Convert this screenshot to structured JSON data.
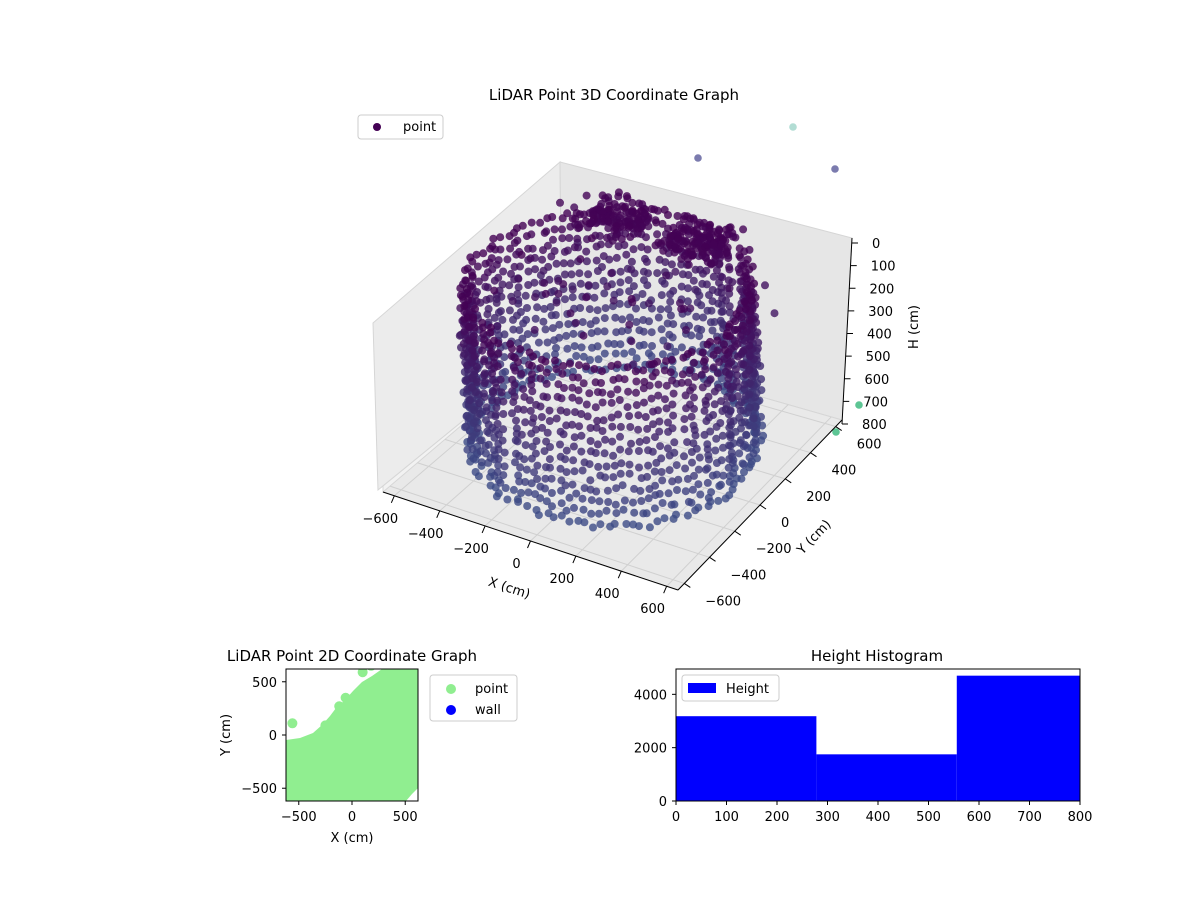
{
  "colors": {
    "point3d_low": "#440154",
    "point3d_high": "#3b528b",
    "point3d_outlier": "#35b779",
    "point2d": "#90ee90",
    "wall": "#0000ff",
    "histogram": "#0000ff"
  },
  "chart_data": [
    {
      "type": "scatter",
      "subtype": "3d",
      "title": "LiDAR Point 3D Coordinate Graph",
      "xlabel": "X (cm)",
      "ylabel": "Y (cm)",
      "zlabel": "H (cm)",
      "xlim": [
        -650,
        650
      ],
      "ylim": [
        -650,
        650
      ],
      "zlim": [
        0,
        800
      ],
      "z_inverted": true,
      "x_ticks": [
        "−600",
        "−400",
        "−200",
        "0",
        "200",
        "400",
        "600"
      ],
      "y_ticks": [
        "−600",
        "−400",
        "−200",
        "0",
        "200",
        "400",
        "600"
      ],
      "z_ticks": [
        "0",
        "100",
        "200",
        "300",
        "400",
        "500",
        "600",
        "700",
        "800"
      ],
      "legend": [
        "point"
      ],
      "legend_position": "top-left",
      "grid": true
    },
    {
      "type": "scatter",
      "title": "LiDAR Point 2D Coordinate Graph",
      "xlabel": "X (cm)",
      "ylabel": "Y (cm)",
      "xlim": [
        -620,
        620
      ],
      "ylim": [
        -620,
        620
      ],
      "x_ticks": [
        "−500",
        "0",
        "500"
      ],
      "y_ticks": [
        "−500",
        "0",
        "500"
      ],
      "series": [
        {
          "name": "point"
        },
        {
          "name": "wall"
        }
      ],
      "legend_position": "outside-right",
      "outliers": [
        [
          -560,
          110
        ],
        [
          -250,
          90
        ],
        [
          -60,
          350
        ],
        [
          -120,
          270
        ],
        [
          100,
          590
        ],
        [
          180,
          650
        ]
      ]
    },
    {
      "type": "bar",
      "subtype": "histogram",
      "title": "Height Histogram",
      "series": [
        {
          "name": "Height"
        }
      ],
      "bins": [
        {
          "start": 0,
          "end": 278,
          "count": 3180
        },
        {
          "start": 278,
          "end": 556,
          "count": 1750
        },
        {
          "start": 556,
          "end": 800,
          "count": 4700
        }
      ],
      "xlim": [
        0,
        800
      ],
      "ylim": [
        0,
        4950
      ],
      "x_ticks": [
        "0",
        "100",
        "200",
        "300",
        "400",
        "500",
        "600",
        "700",
        "800"
      ],
      "y_ticks": [
        "0",
        "2000",
        "4000"
      ],
      "legend_position": "top-left"
    }
  ]
}
